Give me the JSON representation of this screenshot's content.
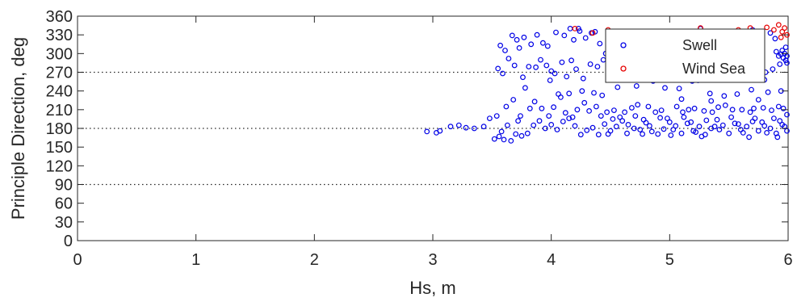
{
  "chart_data": {
    "type": "scatter",
    "title": "",
    "xlabel": "Hs, m",
    "ylabel": "Principle Direction, deg",
    "xlim": [
      0,
      6
    ],
    "ylim": [
      0,
      360
    ],
    "xticks": [
      0,
      1,
      2,
      3,
      4,
      5,
      6
    ],
    "yticks": [
      0,
      30,
      60,
      90,
      120,
      150,
      180,
      210,
      240,
      270,
      300,
      330,
      360
    ],
    "reference_lines": [
      90,
      180,
      270
    ],
    "grid": false,
    "legend_position": "top-right",
    "marker": "open-circle",
    "series": [
      {
        "name": "Swell",
        "color": "#0000e6",
        "points": [
          [
            2.95,
            175
          ],
          [
            3.03,
            173
          ],
          [
            3.06,
            176
          ],
          [
            3.15,
            183
          ],
          [
            3.22,
            185
          ],
          [
            3.28,
            181
          ],
          [
            3.35,
            180
          ],
          [
            3.43,
            183
          ],
          [
            3.48,
            196
          ],
          [
            3.52,
            163
          ],
          [
            3.56,
            167
          ],
          [
            3.58,
            175
          ],
          [
            3.6,
            162
          ],
          [
            3.63,
            185
          ],
          [
            3.66,
            160
          ],
          [
            3.7,
            171
          ],
          [
            3.72,
            192
          ],
          [
            3.75,
            168
          ],
          [
            3.8,
            172
          ],
          [
            3.85,
            185
          ],
          [
            3.9,
            192
          ],
          [
            3.95,
            180
          ],
          [
            4.0,
            186
          ],
          [
            4.05,
            178
          ],
          [
            4.1,
            191
          ],
          [
            4.15,
            196
          ],
          [
            4.2,
            184
          ],
          [
            4.25,
            170
          ],
          [
            4.3,
            177
          ],
          [
            4.35,
            181
          ],
          [
            4.4,
            170
          ],
          [
            4.45,
            187
          ],
          [
            4.5,
            176
          ],
          [
            4.55,
            183
          ],
          [
            4.6,
            192
          ],
          [
            4.65,
            186
          ],
          [
            4.7,
            180
          ],
          [
            4.75,
            178
          ],
          [
            4.8,
            189
          ],
          [
            4.85,
            175
          ],
          [
            4.9,
            171
          ],
          [
            4.95,
            179
          ],
          [
            5.0,
            190
          ],
          [
            5.05,
            184
          ],
          [
            5.1,
            172
          ],
          [
            5.15,
            188
          ],
          [
            5.2,
            176
          ],
          [
            5.25,
            183
          ],
          [
            5.3,
            170
          ],
          [
            5.35,
            180
          ],
          [
            5.4,
            194
          ],
          [
            5.45,
            185
          ],
          [
            5.5,
            172
          ],
          [
            5.55,
            188
          ],
          [
            5.6,
            178
          ],
          [
            5.65,
            183
          ],
          [
            5.7,
            191
          ],
          [
            5.75,
            176
          ],
          [
            5.8,
            184
          ],
          [
            5.85,
            180
          ],
          [
            5.9,
            172
          ],
          [
            5.95,
            186
          ],
          [
            5.99,
            176
          ],
          [
            4.52,
            195
          ],
          [
            4.58,
            198
          ],
          [
            4.64,
            172
          ],
          [
            4.71,
            200
          ],
          [
            4.78,
            194
          ],
          [
            4.83,
            184
          ],
          [
            4.92,
            197
          ],
          [
            4.98,
            196
          ],
          [
            5.03,
            178
          ],
          [
            5.12,
            198
          ],
          [
            5.18,
            190
          ],
          [
            5.22,
            174
          ],
          [
            5.31,
            193
          ],
          [
            5.38,
            183
          ],
          [
            5.42,
            178
          ],
          [
            5.52,
            198
          ],
          [
            5.58,
            187
          ],
          [
            5.62,
            173
          ],
          [
            5.72,
            196
          ],
          [
            5.78,
            190
          ],
          [
            5.82,
            173
          ],
          [
            5.88,
            196
          ],
          [
            5.93,
            192
          ],
          [
            5.97,
            183
          ],
          [
            5.01,
            169
          ],
          [
            5.27,
            167
          ],
          [
            5.67,
            166
          ],
          [
            5.91,
            166
          ],
          [
            4.48,
            171
          ],
          [
            4.77,
            171
          ],
          [
            3.54,
            200
          ],
          [
            3.62,
            215
          ],
          [
            3.68,
            226
          ],
          [
            3.74,
            200
          ],
          [
            3.78,
            245
          ],
          [
            3.82,
            212
          ],
          [
            3.86,
            223
          ],
          [
            3.92,
            212
          ],
          [
            3.98,
            200
          ],
          [
            4.02,
            214
          ],
          [
            4.08,
            230
          ],
          [
            4.12,
            205
          ],
          [
            4.18,
            198
          ],
          [
            4.22,
            210
          ],
          [
            4.28,
            221
          ],
          [
            4.32,
            208
          ],
          [
            4.38,
            215
          ],
          [
            4.42,
            200
          ],
          [
            4.47,
            206
          ],
          [
            4.53,
            209
          ],
          [
            4.62,
            206
          ],
          [
            4.68,
            213
          ],
          [
            4.73,
            218
          ],
          [
            4.82,
            215
          ],
          [
            4.88,
            206
          ],
          [
            4.93,
            209
          ],
          [
            5.06,
            215
          ],
          [
            5.11,
            206
          ],
          [
            5.16,
            210
          ],
          [
            5.21,
            212
          ],
          [
            5.29,
            208
          ],
          [
            5.36,
            206
          ],
          [
            5.41,
            214
          ],
          [
            5.47,
            217
          ],
          [
            5.53,
            210
          ],
          [
            5.61,
            210
          ],
          [
            5.68,
            206
          ],
          [
            5.71,
            212
          ],
          [
            5.79,
            213
          ],
          [
            5.86,
            209
          ],
          [
            5.92,
            215
          ],
          [
            5.96,
            212
          ],
          [
            5.99,
            202
          ],
          [
            4.06,
            235
          ],
          [
            4.15,
            236
          ],
          [
            4.26,
            240
          ],
          [
            4.36,
            237
          ],
          [
            4.43,
            233
          ],
          [
            4.56,
            246
          ],
          [
            4.72,
            248
          ],
          [
            4.86,
            256
          ],
          [
            4.96,
            245
          ],
          [
            5.08,
            244
          ],
          [
            5.19,
            256
          ],
          [
            5.34,
            236
          ],
          [
            5.46,
            232
          ],
          [
            5.57,
            235
          ],
          [
            5.69,
            242
          ],
          [
            5.83,
            238
          ],
          [
            5.94,
            240
          ],
          [
            5.1,
            227
          ],
          [
            5.35,
            224
          ],
          [
            5.75,
            226
          ],
          [
            3.55,
            276
          ],
          [
            3.59,
            268
          ],
          [
            3.64,
            292
          ],
          [
            3.69,
            281
          ],
          [
            3.73,
            309
          ],
          [
            3.76,
            262
          ],
          [
            3.81,
            279
          ],
          [
            3.87,
            278
          ],
          [
            3.91,
            290
          ],
          [
            3.96,
            281
          ],
          [
            4.03,
            268
          ],
          [
            4.09,
            286
          ],
          [
            4.13,
            263
          ],
          [
            4.17,
            289
          ],
          [
            4.21,
            275
          ],
          [
            4.27,
            260
          ],
          [
            4.33,
            283
          ],
          [
            4.39,
            279
          ],
          [
            4.44,
            290
          ],
          [
            4.49,
            280
          ],
          [
            4.54,
            282
          ],
          [
            4.59,
            277
          ],
          [
            4.63,
            285
          ],
          [
            4.69,
            277
          ],
          [
            4.74,
            288
          ],
          [
            4.79,
            270
          ],
          [
            4.84,
            285
          ],
          [
            4.89,
            275
          ],
          [
            4.94,
            290
          ],
          [
            5.09,
            265
          ],
          [
            5.14,
            270
          ],
          [
            5.24,
            257
          ],
          [
            5.33,
            275
          ],
          [
            5.39,
            266
          ],
          [
            5.44,
            275
          ],
          [
            5.49,
            268
          ],
          [
            5.54,
            272
          ],
          [
            5.64,
            260
          ],
          [
            5.74,
            280
          ],
          [
            5.81,
            270
          ],
          [
            5.87,
            275
          ],
          [
            5.93,
            283
          ],
          [
            5.98,
            289
          ],
          [
            5.99,
            296
          ],
          [
            5.97,
            300
          ],
          [
            5.95,
            305
          ],
          [
            5.98,
            310
          ],
          [
            5.96,
            293
          ],
          [
            5.94,
            299
          ],
          [
            5.99,
            285
          ],
          [
            5.92,
            296
          ],
          [
            5.9,
            303
          ],
          [
            3.57,
            313
          ],
          [
            3.61,
            305
          ],
          [
            3.67,
            329
          ],
          [
            3.71,
            322
          ],
          [
            3.77,
            326
          ],
          [
            3.83,
            315
          ],
          [
            3.88,
            330
          ],
          [
            3.93,
            317
          ],
          [
            3.97,
            312
          ],
          [
            4.04,
            334
          ],
          [
            4.11,
            329
          ],
          [
            4.19,
            322
          ],
          [
            4.23,
            340
          ],
          [
            4.29,
            325
          ],
          [
            4.34,
            333
          ],
          [
            4.41,
            316
          ],
          [
            4.46,
            300
          ],
          [
            4.51,
            312
          ],
          [
            4.57,
            295
          ],
          [
            4.61,
            307
          ],
          [
            4.66,
            313
          ],
          [
            4.92,
            330
          ],
          [
            5.02,
            326
          ],
          [
            5.13,
            333
          ],
          [
            5.23,
            320
          ],
          [
            5.37,
            312
          ],
          [
            5.51,
            320
          ],
          [
            5.66,
            330
          ],
          [
            5.76,
            327
          ],
          [
            5.85,
            333
          ],
          [
            5.89,
            324
          ],
          [
            4.16,
            340
          ],
          [
            4.24,
            336
          ],
          [
            4.37,
            335
          ],
          [
            5.26,
            340
          ],
          [
            5.7,
            338
          ],
          [
            5.3,
            298
          ],
          [
            5.5,
            290
          ],
          [
            5.8,
            258
          ],
          [
            4.0,
            272
          ],
          [
            3.99,
            257
          ]
        ]
      },
      {
        "name": "Wind Sea",
        "color": "#e60000",
        "points": [
          [
            4.2,
            340
          ],
          [
            4.35,
            333
          ],
          [
            4.48,
            338
          ],
          [
            5.26,
            341
          ],
          [
            5.58,
            338
          ],
          [
            5.68,
            341
          ],
          [
            5.82,
            342
          ],
          [
            5.88,
            338
          ],
          [
            5.92,
            346
          ],
          [
            5.95,
            335
          ],
          [
            5.97,
            341
          ],
          [
            5.99,
            330
          ],
          [
            5.94,
            326
          ]
        ]
      }
    ]
  }
}
